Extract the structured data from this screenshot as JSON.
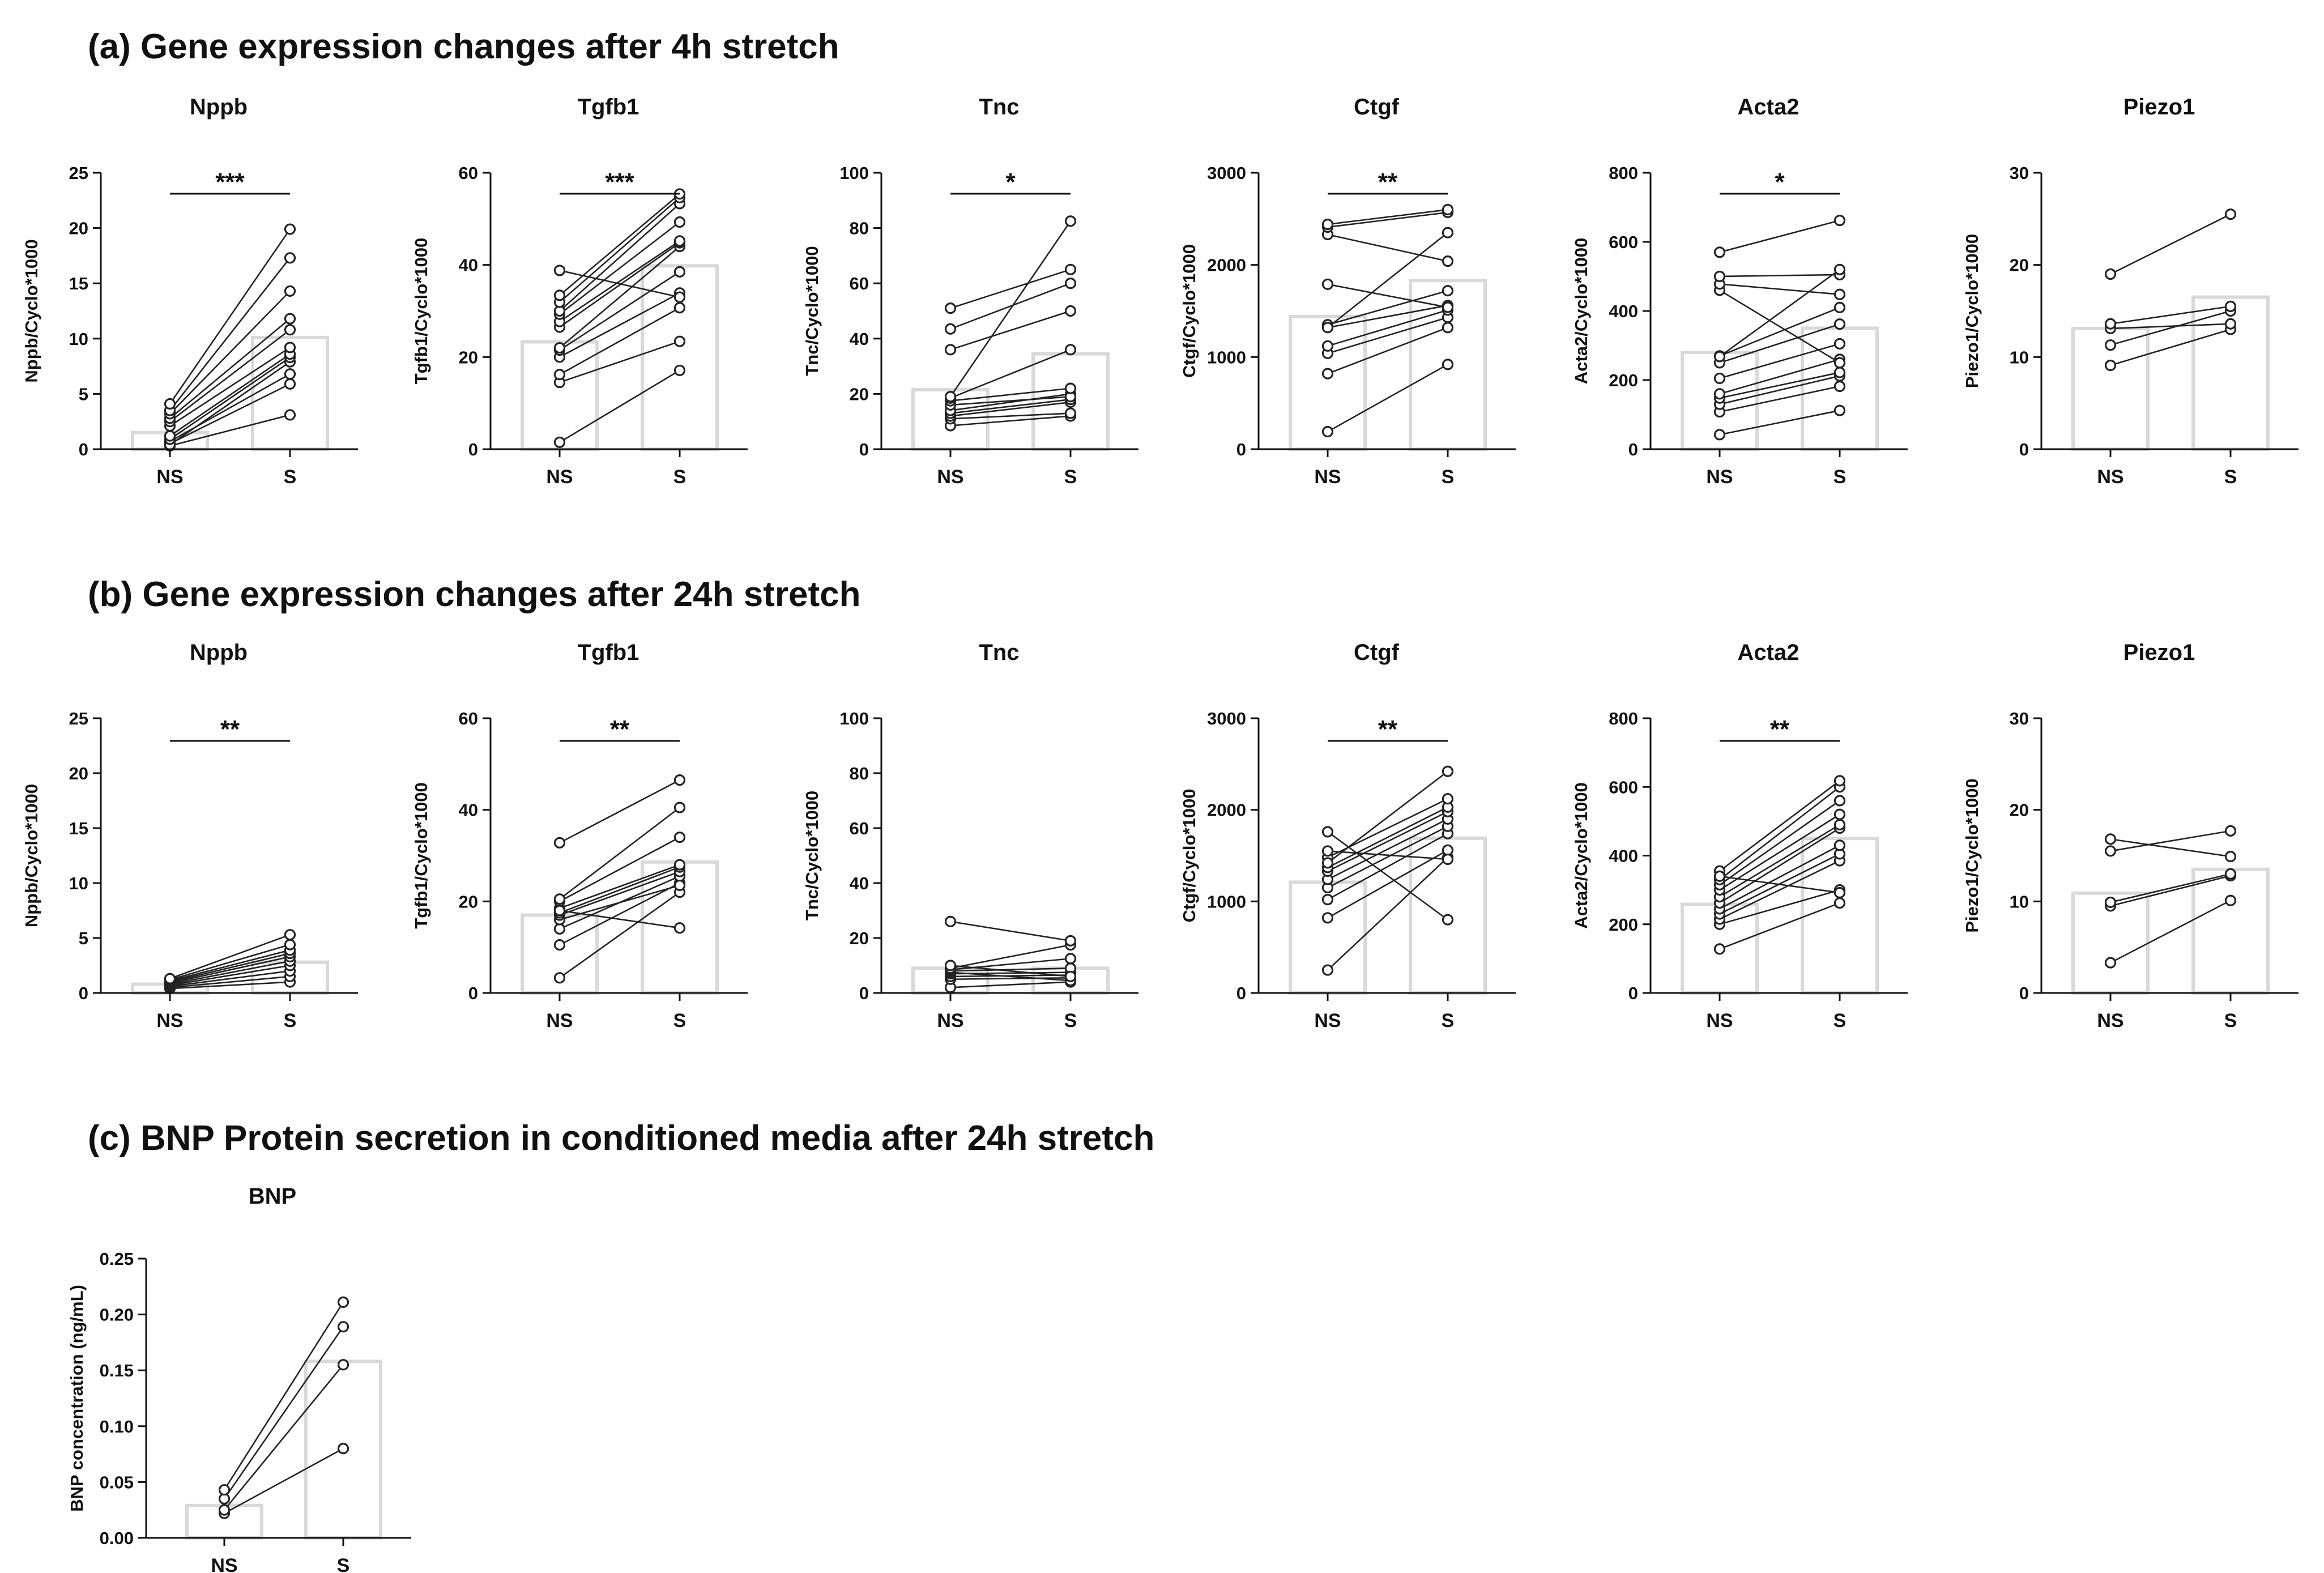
{
  "chart_data": [
    {
      "section": "a",
      "section_title": "(a) Gene expression changes after 4h stretch",
      "panels": [
        {
          "type": "bar",
          "title": "Nppb",
          "ylabel": "Nppb/Cyclo*1000",
          "ylim": [
            0,
            25
          ],
          "ticks": [
            0,
            5,
            10,
            15,
            20,
            25
          ],
          "categories": [
            "NS",
            "S"
          ],
          "bar_values": [
            1.5,
            10.1
          ],
          "significance": "***",
          "pairs": [
            [
              0.3,
              3.1
            ],
            [
              0.5,
              5.9
            ],
            [
              0.7,
              6.8
            ],
            [
              0.4,
              7.9
            ],
            [
              0.9,
              8.3
            ],
            [
              1.2,
              8.6
            ],
            [
              2.1,
              9.2
            ],
            [
              2.5,
              10.8
            ],
            [
              2.8,
              11.8
            ],
            [
              3.2,
              14.3
            ],
            [
              3.5,
              17.3
            ],
            [
              4.1,
              19.9
            ]
          ]
        },
        {
          "type": "bar",
          "title": "Tgfb1",
          "ylabel": "Tgfb1/Cyclo*1000",
          "ylim": [
            0,
            60
          ],
          "ticks": [
            0,
            20,
            40,
            60
          ],
          "categories": [
            "NS",
            "S"
          ],
          "bar_values": [
            23.3,
            39.8
          ],
          "significance": "***",
          "pairs": [
            [
              1.5,
              17.1
            ],
            [
              14.5,
              23.4
            ],
            [
              16.2,
              30.7
            ],
            [
              20.0,
              33.9
            ],
            [
              21.5,
              38.5
            ],
            [
              22.0,
              44.0
            ],
            [
              26.5,
              44.8
            ],
            [
              27.7,
              45.2
            ],
            [
              29.3,
              49.3
            ],
            [
              30.0,
              53.3
            ],
            [
              31.9,
              54.6
            ],
            [
              33.4,
              55.4
            ],
            [
              38.8,
              33.0
            ]
          ]
        },
        {
          "type": "bar",
          "title": "Tnc",
          "ylabel": "Tnc/Cyclo*1000",
          "ylim": [
            0,
            100
          ],
          "ticks": [
            0,
            20,
            40,
            60,
            80,
            100
          ],
          "categories": [
            "NS",
            "S"
          ],
          "bar_values": [
            21.5,
            34.5
          ],
          "significance": "*",
          "pairs": [
            [
              8.5,
              12.0
            ],
            [
              11.0,
              13.0
            ],
            [
              12.0,
              17.0
            ],
            [
              13.0,
              18.0
            ],
            [
              14.0,
              20.0
            ],
            [
              16.0,
              19.0
            ],
            [
              17.5,
              22.0
            ],
            [
              18.5,
              36.0
            ],
            [
              36.0,
              50.0
            ],
            [
              43.5,
              60.0
            ],
            [
              51.0,
              65.0
            ],
            [
              19.0,
              82.5
            ]
          ]
        },
        {
          "type": "bar",
          "title": "Ctgf",
          "ylabel": "Ctgf/Cyclo*1000",
          "ylim": [
            0,
            3000
          ],
          "ticks": [
            0,
            1000,
            2000,
            3000
          ],
          "categories": [
            "NS",
            "S"
          ],
          "bar_values": [
            1440,
            1830
          ],
          "significance": "**",
          "pairs": [
            [
              190,
              920
            ],
            [
              820,
              1320
            ],
            [
              1040,
              1430
            ],
            [
              1120,
              1510
            ],
            [
              1320,
              1560
            ],
            [
              1350,
              1720
            ],
            [
              1790,
              1540
            ],
            [
              2330,
              2040
            ],
            [
              2410,
              2570
            ],
            [
              2440,
              2600
            ],
            [
              1320,
              2350
            ]
          ]
        },
        {
          "type": "bar",
          "title": "Acta2",
          "ylabel": "Acta2/Cyclo*1000",
          "ylim": [
            0,
            800
          ],
          "ticks": [
            0,
            200,
            400,
            600,
            800
          ],
          "categories": [
            "NS",
            "S"
          ],
          "bar_values": [
            280,
            350
          ],
          "significance": "*",
          "pairs": [
            [
              42,
              112
            ],
            [
              108,
              182
            ],
            [
              130,
              212
            ],
            [
              148,
              222
            ],
            [
              160,
              260
            ],
            [
              205,
              305
            ],
            [
              250,
              362
            ],
            [
              270,
              410
            ],
            [
              460,
              250
            ],
            [
              478,
              448
            ],
            [
              500,
              505
            ],
            [
              570,
              662
            ],
            [
              268,
              520
            ]
          ]
        },
        {
          "type": "bar",
          "title": "Piezo1",
          "ylabel": "Piezo1/Cyclo*1000",
          "ylim": [
            0,
            30
          ],
          "ticks": [
            0,
            10,
            20,
            30
          ],
          "categories": [
            "NS",
            "S"
          ],
          "bar_values": [
            13.1,
            16.5
          ],
          "significance": "",
          "pairs": [
            [
              9.1,
              13.0
            ],
            [
              11.3,
              15.0
            ],
            [
              13.1,
              13.6
            ],
            [
              13.6,
              15.5
            ],
            [
              19.0,
              25.5
            ]
          ]
        }
      ]
    },
    {
      "section": "b",
      "section_title": "(b) Gene expression changes after 24h stretch",
      "panels": [
        {
          "type": "bar",
          "title": "Nppb",
          "ylabel": "Nppb/Cyclo*1000",
          "ylim": [
            0,
            25
          ],
          "ticks": [
            0,
            5,
            10,
            15,
            20,
            25
          ],
          "categories": [
            "NS",
            "S"
          ],
          "bar_values": [
            0.8,
            2.8
          ],
          "significance": "**",
          "pairs": [
            [
              0.4,
              1.0
            ],
            [
              0.5,
              1.5
            ],
            [
              0.6,
              2.0
            ],
            [
              0.7,
              2.5
            ],
            [
              0.8,
              2.9
            ],
            [
              0.9,
              3.3
            ],
            [
              1.0,
              3.6
            ],
            [
              1.1,
              3.9
            ],
            [
              1.2,
              4.4
            ],
            [
              1.3,
              5.3
            ]
          ]
        },
        {
          "type": "bar",
          "title": "Tgfb1",
          "ylabel": "Tgfb1/Cyclo*1000",
          "ylim": [
            0,
            60
          ],
          "ticks": [
            0,
            20,
            40,
            60
          ],
          "categories": [
            "NS",
            "S"
          ],
          "bar_values": [
            17.0,
            28.6
          ],
          "significance": "**",
          "pairs": [
            [
              3.3,
              22.0
            ],
            [
              10.5,
              24.0
            ],
            [
              14.0,
              25.5
            ],
            [
              16.0,
              23.5
            ],
            [
              17.0,
              26.5
            ],
            [
              17.5,
              27.5
            ],
            [
              18.5,
              28.0
            ],
            [
              20.0,
              34.0
            ],
            [
              20.5,
              40.5
            ],
            [
              32.8,
              46.5
            ],
            [
              18.0,
              14.2
            ]
          ]
        },
        {
          "type": "bar",
          "title": "Tnc",
          "ylabel": "Tnc/Cyclo*1000",
          "ylim": [
            0,
            100
          ],
          "ticks": [
            0,
            20,
            40,
            60,
            80,
            100
          ],
          "categories": [
            "NS",
            "S"
          ],
          "bar_values": [
            9.0,
            9.0
          ],
          "significance": "",
          "pairs": [
            [
              2.0,
              4.0
            ],
            [
              5.0,
              5.5
            ],
            [
              6.0,
              6.5
            ],
            [
              7.0,
              7.5
            ],
            [
              7.5,
              4.5
            ],
            [
              8.0,
              9.0
            ],
            [
              8.5,
              12.5
            ],
            [
              9.0,
              17.5
            ],
            [
              10.0,
              6.0
            ],
            [
              26.0,
              19.0
            ]
          ]
        },
        {
          "type": "bar",
          "title": "Ctgf",
          "ylabel": "Ctgf/Cyclo*1000",
          "ylim": [
            0,
            3000
          ],
          "ticks": [
            0,
            1000,
            2000,
            3000
          ],
          "categories": [
            "NS",
            "S"
          ],
          "bar_values": [
            1210,
            1690
          ],
          "significance": "**",
          "pairs": [
            [
              250,
              1480
            ],
            [
              820,
              1560
            ],
            [
              1020,
              1740
            ],
            [
              1150,
              1820
            ],
            [
              1240,
              1900
            ],
            [
              1330,
              1980
            ],
            [
              1370,
              2030
            ],
            [
              1480,
              2120
            ],
            [
              1550,
              1460
            ],
            [
              1760,
              800
            ],
            [
              1420,
              2420
            ]
          ]
        },
        {
          "type": "bar",
          "title": "Acta2",
          "ylabel": "Acta2/Cyclo*1000",
          "ylim": [
            0,
            800
          ],
          "ticks": [
            0,
            200,
            400,
            600,
            800
          ],
          "categories": [
            "NS",
            "S"
          ],
          "bar_values": [
            258,
            450
          ],
          "significance": "**",
          "pairs": [
            [
              128,
              262
            ],
            [
              200,
              300
            ],
            [
              215,
              385
            ],
            [
              230,
              405
            ],
            [
              245,
              430
            ],
            [
              262,
              480
            ],
            [
              280,
              490
            ],
            [
              300,
              520
            ],
            [
              315,
              560
            ],
            [
              330,
              600
            ],
            [
              355,
              618
            ],
            [
              340,
              292
            ]
          ]
        },
        {
          "type": "bar",
          "title": "Piezo1",
          "ylabel": "Piezo1/Cyclo*1000",
          "ylim": [
            0,
            30
          ],
          "ticks": [
            0,
            10,
            20,
            30
          ],
          "categories": [
            "NS",
            "S"
          ],
          "bar_values": [
            10.9,
            13.5
          ],
          "significance": "",
          "pairs": [
            [
              3.3,
              10.1
            ],
            [
              9.5,
              12.8
            ],
            [
              9.9,
              13.0
            ],
            [
              15.5,
              17.7
            ],
            [
              16.8,
              14.9
            ]
          ]
        }
      ]
    },
    {
      "section": "c",
      "section_title": "(c) BNP Protein secretion in conditioned media after 24h stretch",
      "panels": [
        {
          "type": "bar",
          "title": "BNP",
          "ylabel": "BNP concentration (ng/mL)",
          "ylim": [
            0,
            0.25
          ],
          "ticks": [
            "0.00",
            "0.05",
            "0.10",
            "0.15",
            "0.20",
            "0.25"
          ],
          "categories": [
            "NS",
            "S"
          ],
          "bar_values": [
            0.029,
            0.158
          ],
          "significance": "",
          "pairs": [
            [
              0.022,
              0.08
            ],
            [
              0.025,
              0.155
            ],
            [
              0.035,
              0.189
            ],
            [
              0.043,
              0.211
            ]
          ]
        }
      ]
    }
  ]
}
